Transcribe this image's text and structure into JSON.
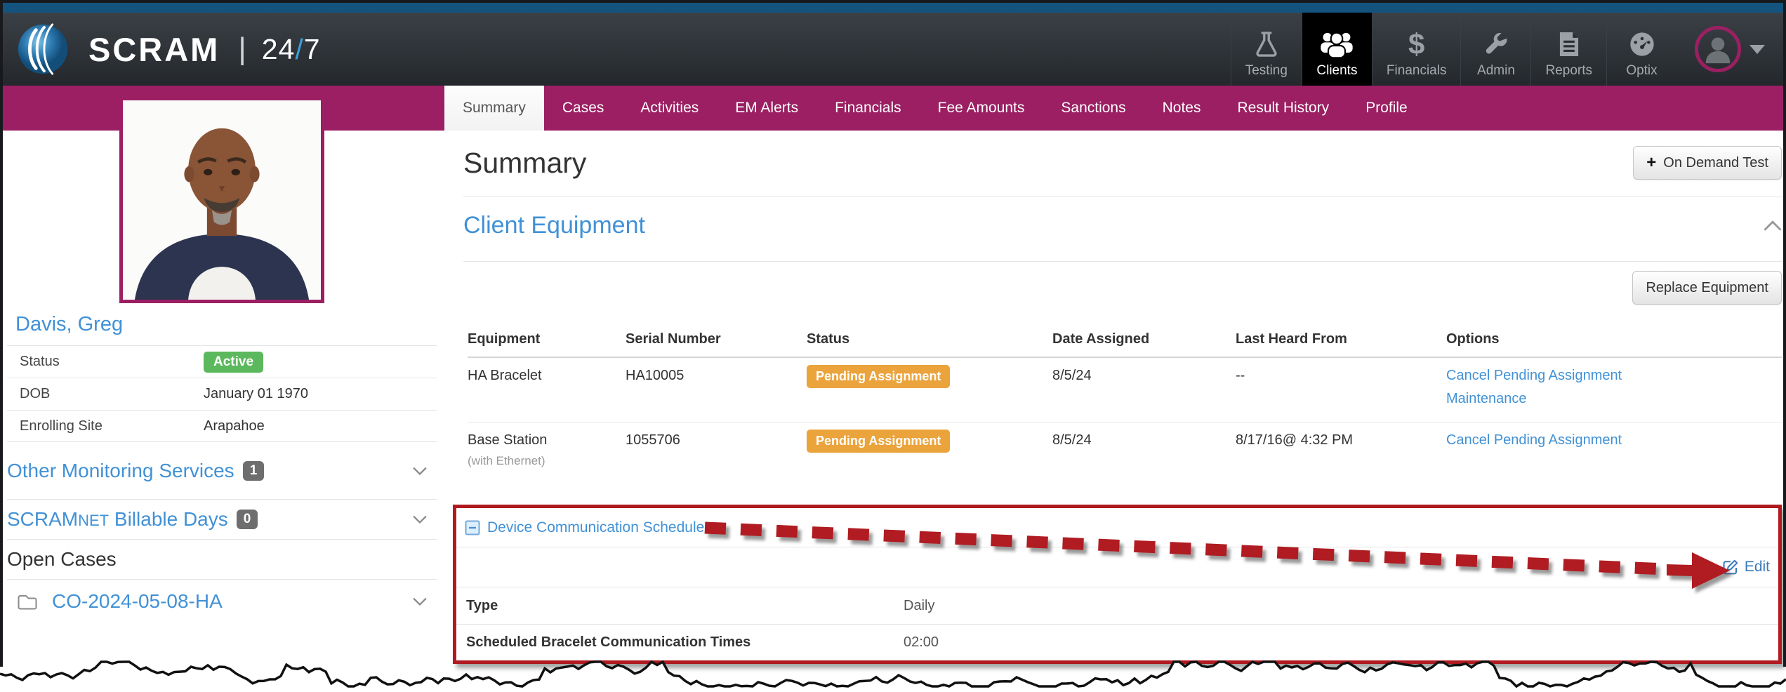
{
  "header": {
    "brand": {
      "name": "SCRAM",
      "separator": "|",
      "product_24": "24",
      "product_slash": "/",
      "product_7": "7"
    },
    "nav": [
      {
        "label": "Testing",
        "icon": "flask-icon",
        "active": false
      },
      {
        "label": "Clients",
        "icon": "clients-icon",
        "active": true
      },
      {
        "label": "Financials",
        "icon": "dollar-icon",
        "active": false
      },
      {
        "label": "Admin",
        "icon": "wrench-icon",
        "active": false
      },
      {
        "label": "Reports",
        "icon": "report-icon",
        "active": false
      },
      {
        "label": "Optix",
        "icon": "gauge-icon",
        "active": false
      }
    ]
  },
  "icons": {
    "add": "+",
    "dollar": "$"
  },
  "tabs": {
    "items": [
      "Summary",
      "Cases",
      "Activities",
      "EM Alerts",
      "Financials",
      "Fee Amounts",
      "Sanctions",
      "Notes",
      "Result History",
      "Profile"
    ],
    "active": "Summary"
  },
  "sidebar": {
    "client_name": "Davis, Greg",
    "details": [
      {
        "label": "Status",
        "value": "Active"
      },
      {
        "label": "DOB",
        "value": "January 01 1970"
      },
      {
        "label": "Enrolling Site",
        "value": "Arapahoe"
      }
    ],
    "sections": [
      {
        "label": "Other Monitoring Services",
        "count": "1"
      },
      {
        "prefix": "SCRAM",
        "smallcaps": "NET",
        "suffix": " Billable Days",
        "count": "0"
      }
    ],
    "open_cases_label": "Open Cases",
    "case_id": "CO-2024-05-08-HA"
  },
  "main": {
    "title": "Summary",
    "on_demand_label": "On Demand Test",
    "section_title": "Client Equipment",
    "replace_label": "Replace Equipment",
    "equipment_table": {
      "columns": [
        "Equipment",
        "Serial Number",
        "Status",
        "Date Assigned",
        "Last Heard From",
        "Options"
      ],
      "rows": [
        {
          "equipment": "HA Bracelet",
          "equipment_note": "",
          "serial": "HA10005",
          "status": "Pending Assignment",
          "date_assigned": "8/5/24",
          "last_heard": "--",
          "options": [
            "Cancel Pending Assignment",
            "Maintenance"
          ]
        },
        {
          "equipment": "Base Station",
          "equipment_note": "(with Ethernet)",
          "serial": "1055706",
          "status": "Pending Assignment",
          "date_assigned": "8/5/24",
          "last_heard": "8/17/16@ 4:32 PM",
          "options": [
            "Cancel Pending Assignment"
          ]
        }
      ]
    },
    "schedule": {
      "title": "Device Communication Schedule",
      "edit_label": "Edit",
      "rows": [
        {
          "label": "Type",
          "value": "Daily"
        },
        {
          "label": "Scheduled Bracelet Communication Times",
          "value": "02:00"
        }
      ]
    }
  },
  "colors": {
    "magenta": "#9B1F62",
    "header_blue": "#15537F",
    "link_blue": "#4191D6",
    "active_green": "#5CB85C",
    "pending_orange": "#EBA33C",
    "annotation_red": "#B01A20",
    "count_badge_gray": "#6E6E6E"
  }
}
